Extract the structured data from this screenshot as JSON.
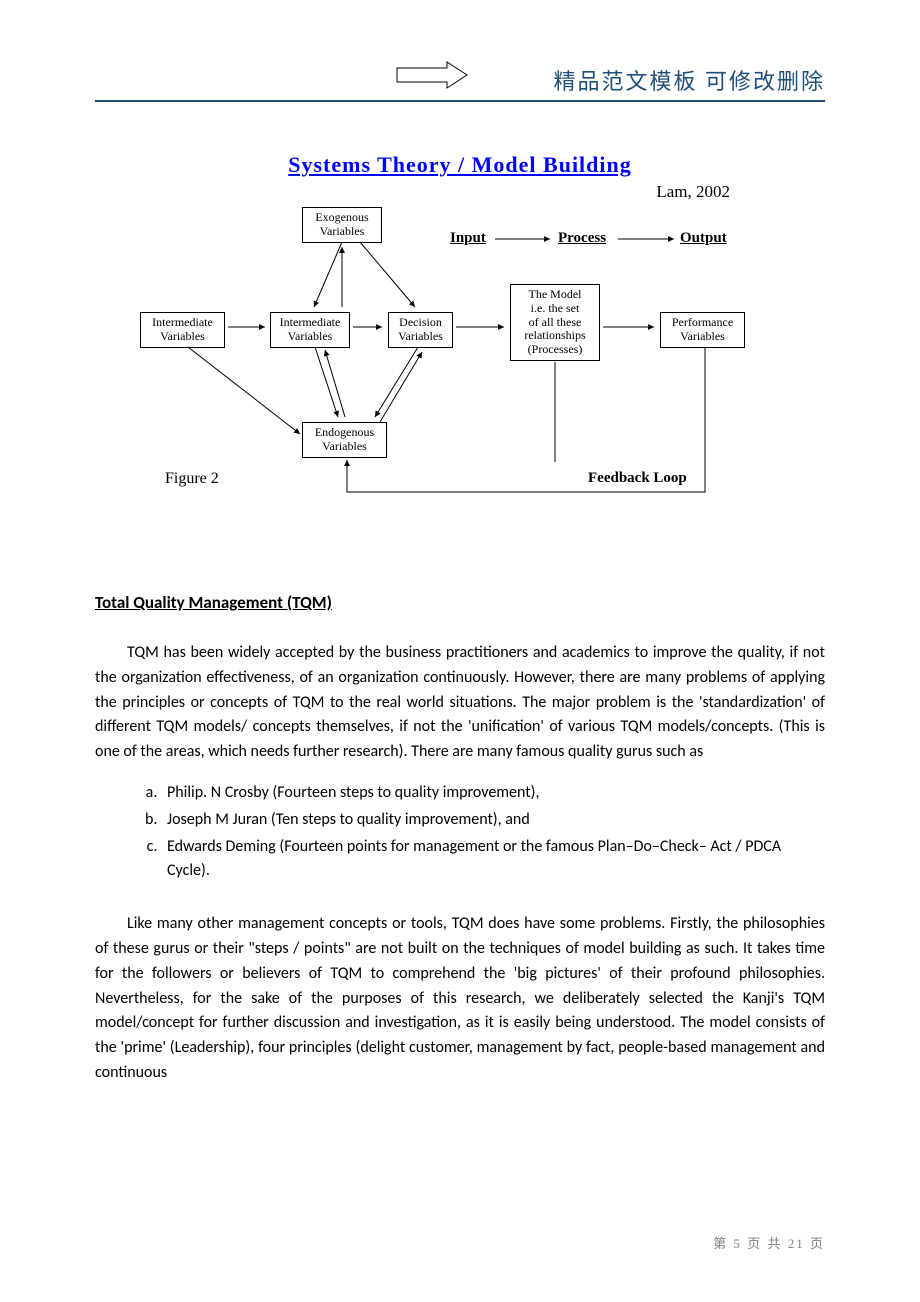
{
  "header": {
    "text": "精品范文模板 可修改删除",
    "border_color": "#1f4e79",
    "arrow": {
      "stroke": "#000000",
      "fill": "none"
    }
  },
  "diagram": {
    "title": "Systems Theory / Model Building",
    "title_color": "#0000ff",
    "cite": "Lam, 2002",
    "figure_label": "Figure 2",
    "flow": {
      "input": "Input",
      "process": "Process",
      "output": "Output"
    },
    "feedback_label": "Feedback Loop",
    "nodes": {
      "exog": "Exogenous\nVariables",
      "inter_left": "Intermediate\nVariables",
      "inter_mid": "Intermediate\nVariables",
      "dec": "Decision\nVariables",
      "model": "The Model\ni.e. the set\nof all these\nrelationships\n(Processes)",
      "perf": "Performance\nVariables",
      "endog": "Endogenous\nVariables"
    },
    "box_border": "#000000",
    "arrow_color": "#000000"
  },
  "content": {
    "section_title": "Total Quality Management (TQM)",
    "para1": "TQM has been widely accepted by the business practitioners and academics to improve the quality, if not the organization effectiveness, of an organization continuously. However, there are many problems of applying the principles or concepts of TQM to the real world situations. The major problem is the 'standardization' of different TQM models/ concepts themselves, if not the 'unification' of various TQM models/concepts. (This is one of the areas, which needs further research). There are many famous quality gurus such as",
    "list": [
      "Philip. N Crosby (Fourteen steps to quality improvement),",
      "Joseph M Juran (Ten steps to quality improvement), and",
      "Edwards Deming (Fourteen points for management or the famous Plan–Do–Check– Act / PDCA Cycle)."
    ],
    "para2": "Like many other management concepts or tools, TQM does have some problems. Firstly, the philosophies of these gurus or their \"steps / points\" are not built on the techniques of model building as such. It takes time for the followers or believers of TQM to comprehend the 'big pictures' of their profound philosophies. Nevertheless, for the sake of the purposes of this research, we deliberately selected the Kanji's TQM model/concept for further discussion and investigation, as it is easily being understood. The model consists of the 'prime' (Leadership), four principles (delight customer, management by fact, people-based management and continuous"
  },
  "footer": {
    "text_prefix": "第 ",
    "page_current": "5",
    "text_mid": " 页 共 ",
    "page_total": "21",
    "text_suffix": " 页"
  }
}
